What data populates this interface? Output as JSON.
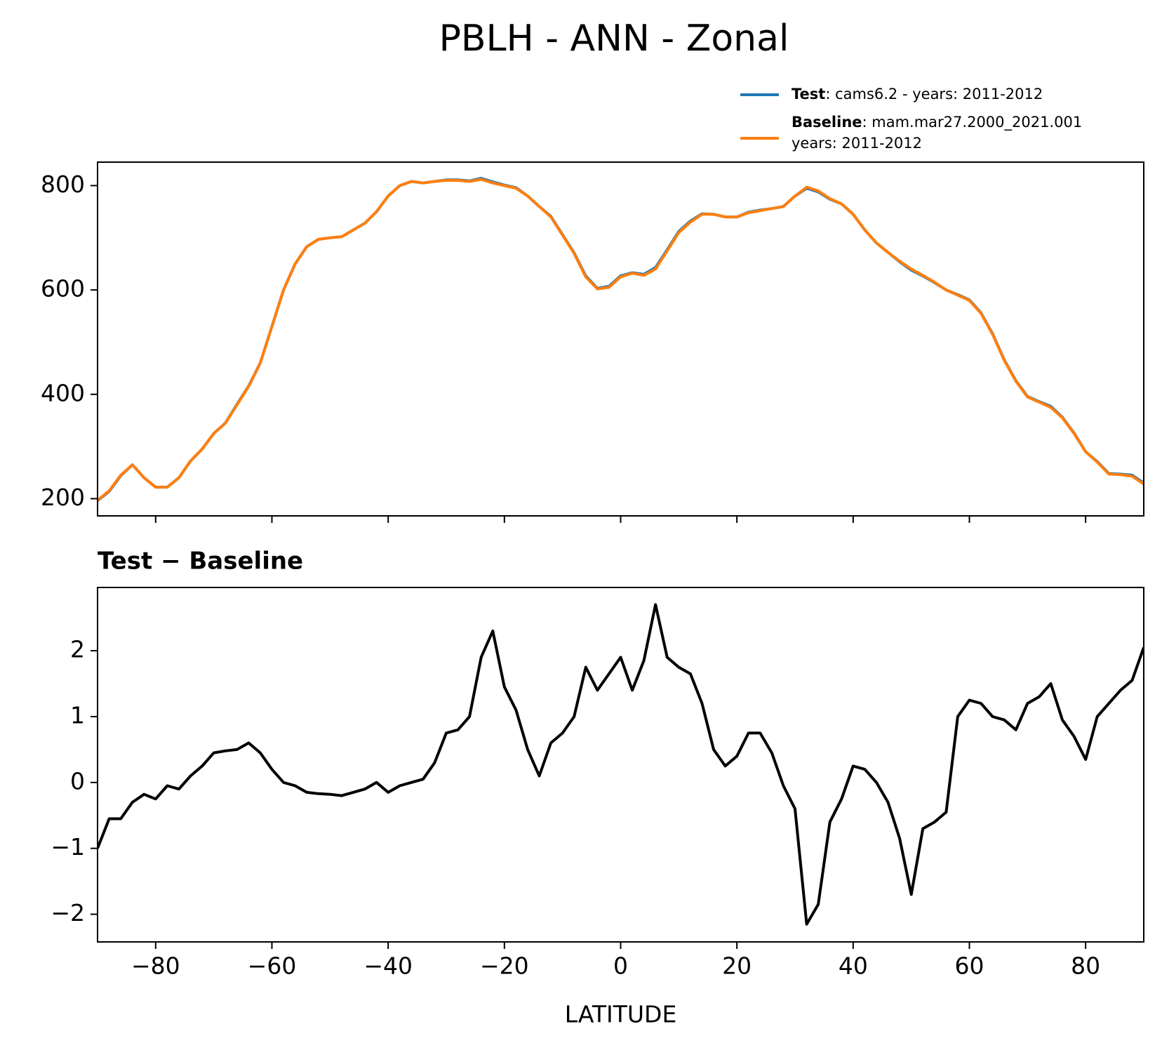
{
  "title": "PBLH - ANN - Zonal",
  "chart_data": [
    {
      "type": "line",
      "x": [
        -90,
        -88,
        -86,
        -84,
        -82,
        -80,
        -78,
        -76,
        -74,
        -72,
        -70,
        -68,
        -66,
        -64,
        -62,
        -60,
        -58,
        -56,
        -54,
        -52,
        -50,
        -48,
        -46,
        -44,
        -42,
        -40,
        -38,
        -36,
        -34,
        -32,
        -30,
        -28,
        -26,
        -24,
        -22,
        -20,
        -18,
        -16,
        -14,
        -12,
        -10,
        -8,
        -6,
        -4,
        -2,
        0,
        2,
        4,
        6,
        8,
        10,
        12,
        14,
        16,
        18,
        20,
        22,
        24,
        26,
        28,
        30,
        32,
        34,
        36,
        38,
        40,
        42,
        44,
        46,
        48,
        50,
        52,
        54,
        56,
        58,
        60,
        62,
        64,
        66,
        68,
        70,
        72,
        74,
        76,
        78,
        80,
        82,
        84,
        86,
        88,
        90
      ],
      "series": [
        {
          "name": "Test",
          "label": [
            ": cams6.2 - years: 2011-2012"
          ],
          "color": "#1f77b4",
          "values": [
            196,
            214,
            244,
            265,
            240,
            222,
            222,
            240,
            272,
            295,
            325,
            345,
            381,
            416,
            460,
            530,
            600,
            650,
            683,
            697,
            700,
            702,
            715,
            728,
            750,
            780,
            800,
            808,
            805,
            808,
            811,
            811,
            809,
            814,
            807,
            801,
            796,
            780,
            760,
            741,
            706,
            671,
            627,
            603,
            607,
            627,
            633,
            630,
            643,
            677,
            712,
            732,
            746,
            745,
            740,
            740,
            749,
            753,
            756,
            760,
            780,
            795,
            788,
            774,
            765,
            745,
            715,
            690,
            672,
            654,
            638,
            627,
            614,
            600,
            591,
            581,
            556,
            516,
            466,
            426,
            396,
            386,
            377,
            356,
            326,
            290,
            271,
            248,
            247,
            245,
            230
          ]
        },
        {
          "name": "Baseline",
          "label": [
            ": mam.mar27.2000_2021.001",
            "years: 2011-2012"
          ],
          "color": "#ff7f0e",
          "values": [
            197,
            215,
            245,
            265,
            240,
            222,
            222,
            240,
            272,
            295,
            325,
            345,
            380,
            415,
            460,
            530,
            600,
            650,
            683,
            697,
            700,
            702,
            715,
            728,
            750,
            780,
            800,
            808,
            805,
            808,
            810,
            810,
            808,
            812,
            805,
            800,
            795,
            780,
            760,
            740,
            705,
            670,
            625,
            602,
            605,
            625,
            632,
            628,
            640,
            675,
            710,
            730,
            745,
            745,
            740,
            740,
            748,
            752,
            756,
            760,
            780,
            797,
            790,
            775,
            765,
            745,
            715,
            690,
            672,
            655,
            640,
            628,
            615,
            600,
            590,
            580,
            555,
            515,
            465,
            425,
            395,
            385,
            375,
            355,
            325,
            290,
            270,
            247,
            246,
            243,
            228
          ]
        }
      ],
      "xlim": [
        -90,
        90
      ],
      "xticks": [
        -80,
        -60,
        -40,
        -20,
        0,
        20,
        40,
        60,
        80
      ],
      "show_xtick_labels": false,
      "ylim": [
        167,
        845
      ],
      "yticks": [
        200,
        400,
        600,
        800
      ],
      "legend": "upper right"
    },
    {
      "type": "line",
      "title": "Test − Baseline",
      "xlabel": "LATITUDE",
      "x": [
        -90,
        -88,
        -86,
        -84,
        -82,
        -80,
        -78,
        -76,
        -74,
        -72,
        -70,
        -68,
        -66,
        -64,
        -62,
        -60,
        -58,
        -56,
        -54,
        -52,
        -50,
        -48,
        -46,
        -44,
        -42,
        -40,
        -38,
        -36,
        -34,
        -32,
        -30,
        -28,
        -26,
        -24,
        -22,
        -20,
        -18,
        -16,
        -14,
        -12,
        -10,
        -8,
        -6,
        -4,
        -2,
        0,
        2,
        4,
        6,
        8,
        10,
        12,
        14,
        16,
        18,
        20,
        22,
        24,
        26,
        28,
        30,
        32,
        34,
        36,
        38,
        40,
        42,
        44,
        46,
        48,
        50,
        52,
        54,
        56,
        58,
        60,
        62,
        64,
        66,
        68,
        70,
        72,
        74,
        76,
        78,
        80,
        82,
        84,
        86,
        88,
        90
      ],
      "series": [
        {
          "color": "#000000",
          "values": [
            -1.0,
            -0.55,
            -0.55,
            -0.3,
            -0.18,
            -0.25,
            -0.05,
            -0.1,
            0.1,
            0.25,
            0.45,
            0.48,
            0.5,
            0.6,
            0.45,
            0.2,
            0.0,
            -0.05,
            -0.15,
            -0.17,
            -0.18,
            -0.2,
            -0.15,
            -0.1,
            0.0,
            -0.15,
            -0.05,
            0.0,
            0.05,
            0.3,
            0.75,
            0.8,
            1.0,
            1.9,
            2.3,
            1.45,
            1.1,
            0.5,
            0.1,
            0.6,
            0.75,
            1.0,
            1.75,
            1.4,
            1.65,
            1.9,
            1.4,
            1.85,
            2.7,
            1.9,
            1.75,
            1.65,
            1.2,
            0.5,
            0.25,
            0.4,
            0.75,
            0.75,
            0.45,
            -0.05,
            -0.4,
            -2.15,
            -1.85,
            -0.6,
            -0.25,
            0.25,
            0.2,
            0.0,
            -0.3,
            -0.85,
            -1.7,
            -0.7,
            -0.6,
            -0.45,
            1.0,
            1.25,
            1.2,
            1.0,
            0.95,
            0.8,
            1.2,
            1.3,
            1.5,
            0.95,
            0.7,
            0.35,
            1.0,
            1.2,
            1.4,
            1.55,
            2.05
          ]
        }
      ],
      "xlim": [
        -90,
        90
      ],
      "xticks": [
        {
          "value": -80,
          "label": "−80"
        },
        {
          "value": -60,
          "label": "−60"
        },
        {
          "value": -40,
          "label": "−40"
        },
        {
          "value": -20,
          "label": "−20"
        },
        0,
        20,
        40,
        60,
        80
      ],
      "show_xtick_labels": true,
      "ylim": [
        -2.42,
        2.96
      ],
      "yticks": [
        {
          "value": -2,
          "label": "−2"
        },
        {
          "value": -1,
          "label": "−1"
        },
        0,
        1,
        2
      ]
    }
  ]
}
